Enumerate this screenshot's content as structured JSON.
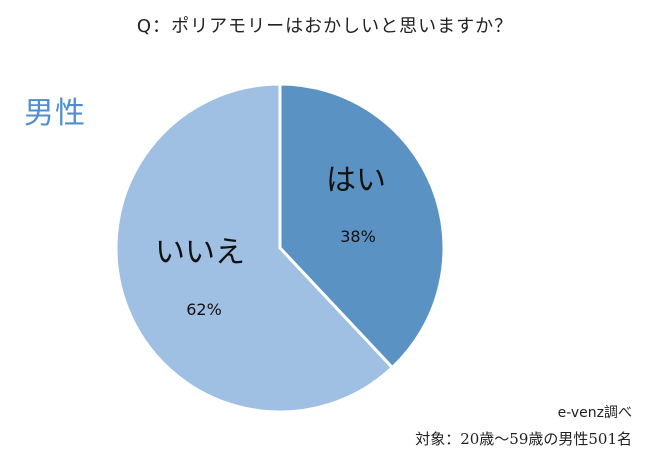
{
  "chart_data": {
    "type": "pie",
    "title": "Q：ポリアモリーはおかしいと思いますか？",
    "subtitle": "男性",
    "slices": [
      {
        "label": "はい",
        "value": 38,
        "value_label": "38%",
        "color": "#5b92c4"
      },
      {
        "label": "いいえ",
        "value": 62,
        "value_label": "62%",
        "color": "#9fbfe3"
      }
    ],
    "start": "top",
    "direction": "clockwise",
    "source": "e-venz調べ",
    "note": "対象：20歳〜59歳の男性501名"
  }
}
